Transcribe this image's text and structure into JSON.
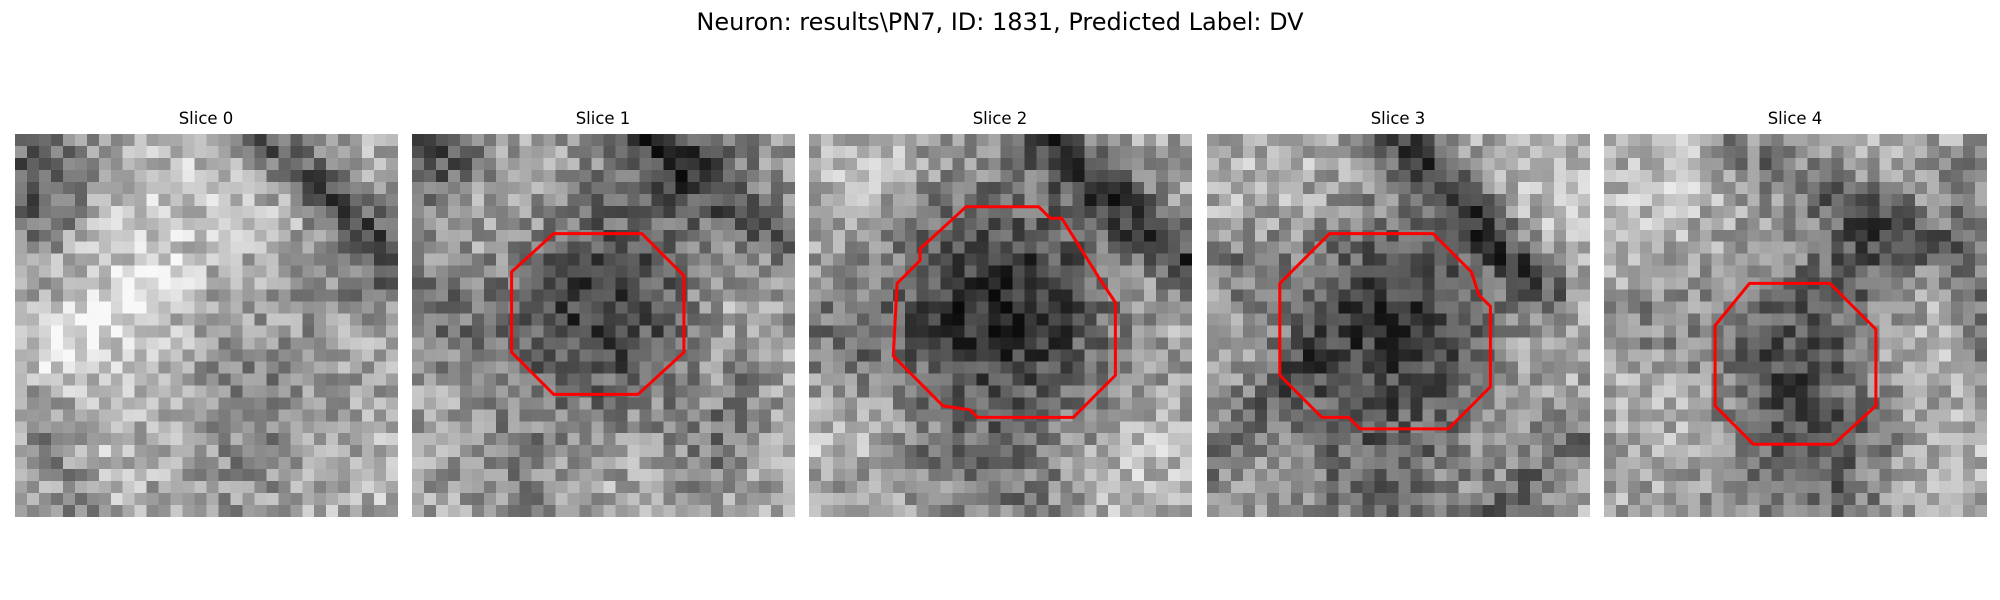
{
  "figure": {
    "title": "Neuron: results\\PN7, ID: 1831, Predicted Label: DV"
  },
  "outline_color": "#ff0000",
  "panels": [
    {
      "title": "Slice 0",
      "seed": 11,
      "has_contour": false,
      "bright_blobs": [
        [
          0.25,
          0.3,
          0.18,
          38
        ],
        [
          0.6,
          0.12,
          0.15,
          28
        ],
        [
          0.3,
          0.85,
          0.2,
          30
        ],
        [
          0.85,
          0.85,
          0.16,
          24
        ]
      ],
      "dark_blobs": [
        [
          0.05,
          0.15,
          0.12,
          95
        ],
        [
          0.68,
          0.7,
          0.16,
          40
        ],
        [
          0.5,
          0.95,
          0.18,
          25
        ]
      ],
      "dark_lines": [
        [
          0.62,
          0.0,
          1.0,
          0.32,
          0.05,
          95
        ],
        [
          0.0,
          0.6,
          0.18,
          1.0,
          0.05,
          40
        ],
        [
          0.72,
          0.35,
          1.0,
          0.42,
          0.05,
          30
        ]
      ],
      "bright_lines": [
        [
          0.05,
          0.6,
          0.38,
          0.4,
          0.05,
          45
        ]
      ]
    },
    {
      "title": "Slice 1",
      "seed": 23,
      "has_contour": true,
      "contour": [
        [
          0.37,
          0.26
        ],
        [
          0.6,
          0.26
        ],
        [
          0.71,
          0.37
        ],
        [
          0.71,
          0.57
        ],
        [
          0.59,
          0.68
        ],
        [
          0.37,
          0.68
        ],
        [
          0.26,
          0.57
        ],
        [
          0.26,
          0.36
        ]
      ],
      "bright_blobs": [
        [
          0.2,
          0.2,
          0.14,
          22
        ],
        [
          0.88,
          0.5,
          0.12,
          30
        ],
        [
          0.4,
          0.88,
          0.15,
          25
        ]
      ],
      "dark_blobs": [
        [
          0.49,
          0.47,
          0.2,
          105
        ],
        [
          0.05,
          0.05,
          0.1,
          100
        ],
        [
          0.7,
          0.05,
          0.15,
          55
        ],
        [
          0.05,
          0.45,
          0.1,
          50
        ],
        [
          0.3,
          0.9,
          0.12,
          45
        ]
      ],
      "dark_lines": [
        [
          0.6,
          0.0,
          1.0,
          0.3,
          0.05,
          60
        ],
        [
          0.75,
          0.9,
          0.95,
          0.5,
          0.05,
          40
        ]
      ],
      "bright_lines": []
    },
    {
      "title": "Slice 2",
      "seed": 37,
      "has_contour": true,
      "contour": [
        [
          0.41,
          0.19
        ],
        [
          0.6,
          0.19
        ],
        [
          0.63,
          0.22
        ],
        [
          0.66,
          0.22
        ],
        [
          0.76,
          0.38
        ],
        [
          0.8,
          0.44
        ],
        [
          0.8,
          0.63
        ],
        [
          0.69,
          0.74
        ],
        [
          0.44,
          0.74
        ],
        [
          0.42,
          0.72
        ],
        [
          0.35,
          0.71
        ],
        [
          0.22,
          0.58
        ],
        [
          0.23,
          0.39
        ],
        [
          0.29,
          0.33
        ],
        [
          0.29,
          0.3
        ]
      ],
      "bright_blobs": [
        [
          0.15,
          0.1,
          0.15,
          28
        ],
        [
          0.1,
          0.85,
          0.14,
          32
        ],
        [
          0.85,
          0.85,
          0.14,
          30
        ],
        [
          0.9,
          0.45,
          0.1,
          20
        ]
      ],
      "dark_blobs": [
        [
          0.5,
          0.46,
          0.23,
          125
        ],
        [
          0.06,
          0.55,
          0.1,
          35
        ],
        [
          0.55,
          0.95,
          0.12,
          35
        ]
      ],
      "dark_lines": [
        [
          0.6,
          0.0,
          1.0,
          0.35,
          0.05,
          100
        ],
        [
          0.0,
          0.95,
          0.35,
          0.85,
          0.05,
          35
        ]
      ],
      "bright_lines": []
    },
    {
      "title": "Slice 3",
      "seed": 53,
      "has_contour": true,
      "contour": [
        [
          0.32,
          0.26
        ],
        [
          0.59,
          0.26
        ],
        [
          0.69,
          0.36
        ],
        [
          0.71,
          0.42
        ],
        [
          0.74,
          0.45
        ],
        [
          0.74,
          0.66
        ],
        [
          0.63,
          0.77
        ],
        [
          0.4,
          0.77
        ],
        [
          0.37,
          0.74
        ],
        [
          0.3,
          0.74
        ],
        [
          0.19,
          0.63
        ],
        [
          0.19,
          0.39
        ]
      ],
      "bright_blobs": [
        [
          0.2,
          0.15,
          0.15,
          25
        ],
        [
          0.85,
          0.15,
          0.14,
          30
        ],
        [
          0.9,
          0.5,
          0.1,
          25
        ],
        [
          0.12,
          0.5,
          0.1,
          20
        ]
      ],
      "dark_blobs": [
        [
          0.47,
          0.5,
          0.22,
          110
        ],
        [
          0.45,
          0.95,
          0.15,
          45
        ],
        [
          0.08,
          0.35,
          0.08,
          40
        ]
      ],
      "dark_lines": [
        [
          0.5,
          0.0,
          0.88,
          0.42,
          0.05,
          95
        ],
        [
          0.0,
          0.85,
          0.25,
          0.6,
          0.05,
          45
        ],
        [
          0.75,
          1.0,
          0.95,
          0.8,
          0.05,
          55
        ]
      ],
      "bright_lines": []
    },
    {
      "title": "Slice 4",
      "seed": 71,
      "has_contour": true,
      "contour": [
        [
          0.38,
          0.39
        ],
        [
          0.59,
          0.39
        ],
        [
          0.71,
          0.51
        ],
        [
          0.71,
          0.71
        ],
        [
          0.6,
          0.81
        ],
        [
          0.39,
          0.81
        ],
        [
          0.29,
          0.71
        ],
        [
          0.29,
          0.5
        ]
      ],
      "bright_blobs": [
        [
          0.15,
          0.15,
          0.15,
          25
        ],
        [
          0.8,
          0.55,
          0.1,
          30
        ],
        [
          0.18,
          0.7,
          0.12,
          25
        ],
        [
          0.88,
          0.88,
          0.1,
          20
        ]
      ],
      "dark_blobs": [
        [
          0.5,
          0.58,
          0.18,
          85
        ],
        [
          0.7,
          0.3,
          0.1,
          60
        ],
        [
          0.55,
          0.92,
          0.15,
          55
        ],
        [
          0.1,
          0.5,
          0.08,
          30
        ]
      ],
      "dark_lines": [
        [
          0.35,
          0.05,
          0.9,
          0.3,
          0.05,
          50
        ],
        [
          0.95,
          0.1,
          1.0,
          0.6,
          0.04,
          40
        ]
      ],
      "bright_lines": []
    }
  ]
}
